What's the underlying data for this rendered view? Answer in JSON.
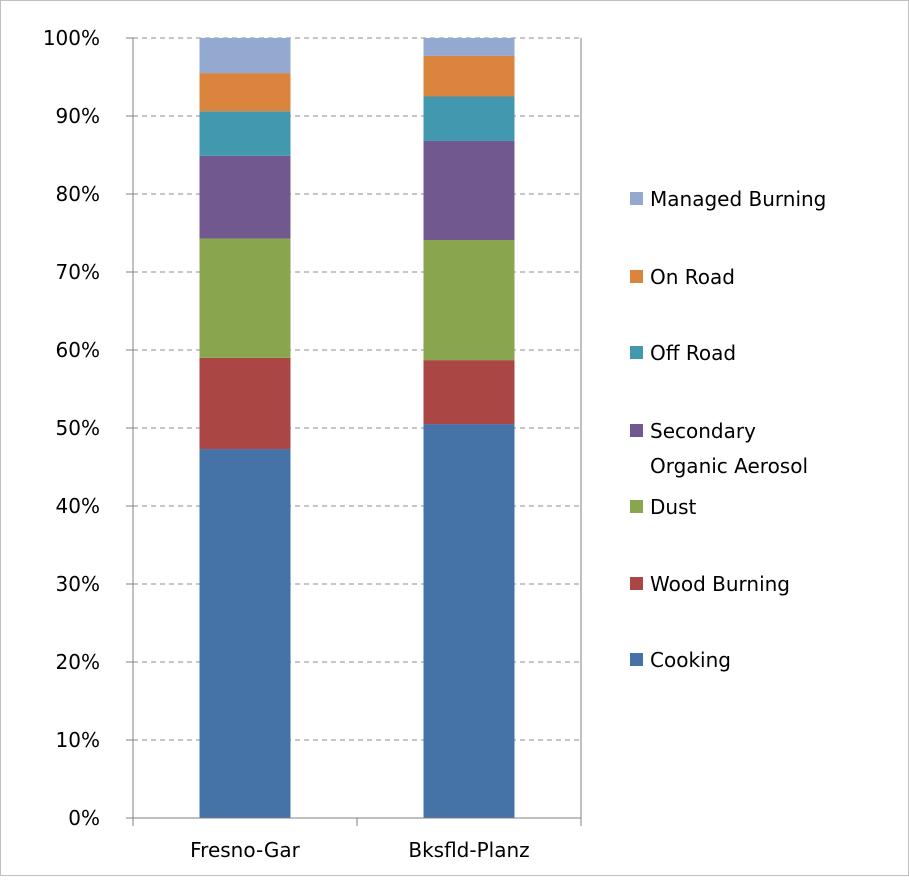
{
  "chart_data": {
    "type": "bar",
    "stacked": "percent",
    "categories": [
      "Fresno-Gar",
      "Bksfld-Planz"
    ],
    "series": [
      {
        "name": "Cooking",
        "values": [
          47.3,
          50.5
        ],
        "color": "#4572A7"
      },
      {
        "name": "Wood Burning",
        "values": [
          11.7,
          8.2
        ],
        "color": "#AA4643"
      },
      {
        "name": "Dust",
        "values": [
          15.3,
          15.4
        ],
        "color": "#89A54E"
      },
      {
        "name": "Secondary Organic Aerosol",
        "values": [
          10.6,
          12.7
        ],
        "color": "#71588F"
      },
      {
        "name": "Off Road",
        "values": [
          5.7,
          5.7
        ],
        "color": "#4198AF"
      },
      {
        "name": "On Road",
        "values": [
          4.9,
          5.2
        ],
        "color": "#DB843D"
      },
      {
        "name": "Managed Burning",
        "values": [
          4.5,
          2.3
        ],
        "color": "#93A9CF"
      }
    ],
    "legend_labels": [
      [
        "Managed Burning"
      ],
      [
        "On Road"
      ],
      [
        "Off Road"
      ],
      [
        "Secondary",
        "Organic Aerosol"
      ],
      [
        "Dust"
      ],
      [
        "Wood Burning"
      ],
      [
        "Cooking"
      ]
    ],
    "legend_colors": [
      "#93A9CF",
      "#DB843D",
      "#4198AF",
      "#71588F",
      "#89A54E",
      "#AA4643",
      "#4572A7"
    ],
    "y_ticks": [
      "0%",
      "10%",
      "20%",
      "30%",
      "40%",
      "50%",
      "60%",
      "70%",
      "80%",
      "90%",
      "100%"
    ],
    "ylim": [
      0,
      100
    ],
    "grid": "dashed-horizontal",
    "legend_position": "right"
  }
}
